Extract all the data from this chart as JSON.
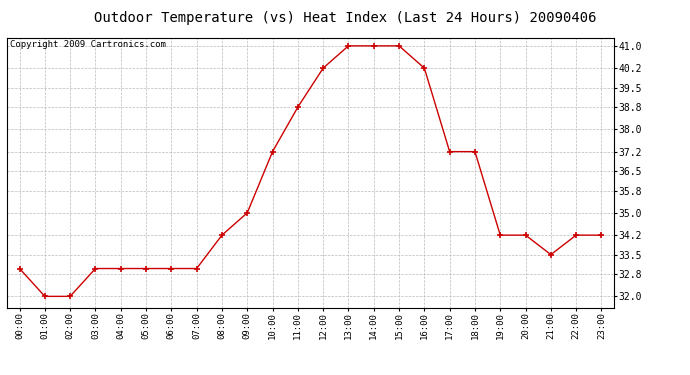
{
  "title": "Outdoor Temperature (vs) Heat Index (Last 24 Hours) 20090406",
  "copyright": "Copyright 2009 Cartronics.com",
  "x_labels": [
    "00:00",
    "01:00",
    "02:00",
    "03:00",
    "04:00",
    "05:00",
    "06:00",
    "07:00",
    "08:00",
    "09:00",
    "10:00",
    "11:00",
    "12:00",
    "13:00",
    "14:00",
    "15:00",
    "16:00",
    "17:00",
    "18:00",
    "19:00",
    "20:00",
    "21:00",
    "22:00",
    "23:00"
  ],
  "y_values": [
    33.0,
    32.0,
    32.0,
    33.0,
    33.0,
    33.0,
    33.0,
    33.0,
    34.2,
    35.0,
    37.2,
    38.8,
    40.2,
    41.0,
    41.0,
    41.0,
    40.2,
    37.2,
    37.2,
    34.2,
    34.2,
    33.5,
    34.2,
    34.2
  ],
  "y_ticks": [
    32.0,
    32.8,
    33.5,
    34.2,
    35.0,
    35.8,
    36.5,
    37.2,
    38.0,
    38.8,
    39.5,
    40.2,
    41.0
  ],
  "ylim": [
    31.6,
    41.3
  ],
  "line_color": "#cc0000",
  "marker_color": "#cc0000",
  "bg_color": "#ffffff",
  "grid_color": "#bbbbbb",
  "title_fontsize": 10,
  "copyright_fontsize": 6.5
}
